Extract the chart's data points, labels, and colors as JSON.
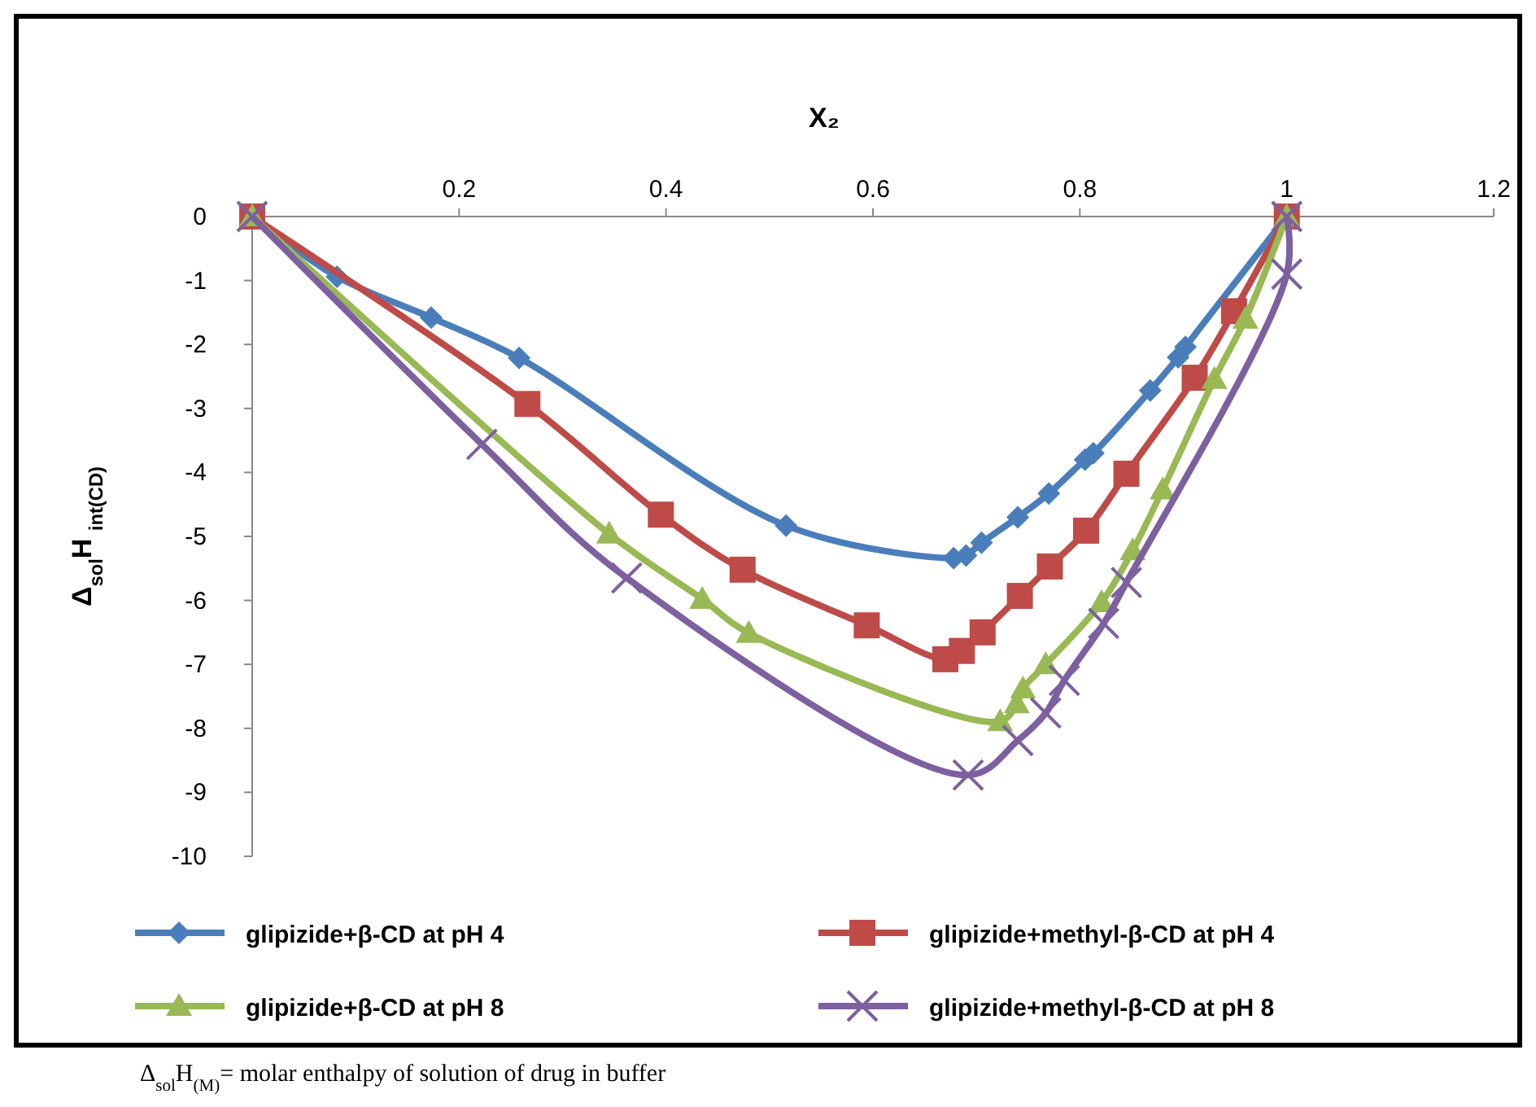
{
  "chart_data": {
    "type": "line",
    "xlabel": "X₂",
    "ylabel": "Δ$_{sol}$H $_{int(CD)}$",
    "xlim": [
      0,
      1.2
    ],
    "xticks": [
      0.2,
      0.4,
      0.6,
      0.8,
      1,
      1.2
    ],
    "ylim": [
      -10,
      0
    ],
    "yticks": [
      0,
      -1,
      -2,
      -3,
      -4,
      -5,
      -6,
      -7,
      -8,
      -9,
      -10
    ],
    "grid": false,
    "legend": "bottom",
    "annotations": [
      "Δ$_{sol}$H$_{(M)}$= molar enthalpy of solution of drug in buffer"
    ],
    "series": [
      {
        "name": "glipizide+β-CD at pH 4",
        "color": "#4a7ebb",
        "marker": "diamond",
        "x": [
          0,
          0.082,
          0.173,
          0.258,
          0.516,
          0.678,
          0.69,
          0.705,
          0.74,
          0.77,
          0.805,
          0.813,
          0.868,
          0.895,
          0.902,
          1
        ],
        "values": [
          0,
          -0.94,
          -1.58,
          -2.21,
          -4.83,
          -5.34,
          -5.3,
          -5.1,
          -4.7,
          -4.33,
          -3.8,
          -3.7,
          -2.72,
          -2.2,
          -2.04,
          0
        ]
      },
      {
        "name": "glipizide+methyl-β-CD at pH 4",
        "color": "#be4b48",
        "marker": "square",
        "x": [
          0,
          0.266,
          0.395,
          0.474,
          0.594,
          0.67,
          0.686,
          0.706,
          0.742,
          0.771,
          0.806,
          0.845,
          0.911,
          0.949,
          1
        ],
        "values": [
          0,
          -2.93,
          -4.66,
          -5.52,
          -6.39,
          -6.92,
          -6.79,
          -6.5,
          -5.93,
          -5.47,
          -4.91,
          -4.02,
          -2.52,
          -1.48,
          0
        ]
      },
      {
        "name": "glipizide+β-CD at pH 8",
        "color": "#98b954",
        "marker": "triangle",
        "x": [
          0,
          0.345,
          0.435,
          0.48,
          0.723,
          0.739,
          0.745,
          0.767,
          0.821,
          0.851,
          0.88,
          0.93,
          0.96,
          1
        ],
        "values": [
          0,
          -4.96,
          -5.98,
          -6.51,
          -7.89,
          -7.61,
          -7.38,
          -7.0,
          -6.03,
          -5.22,
          -4.27,
          -2.54,
          -1.6,
          0
        ]
      },
      {
        "name": "glipizide+methyl-β-CD at pH 8",
        "color": "#7d60a0",
        "marker": "cross",
        "x": [
          0,
          0.222,
          0.362,
          0.692,
          0.74,
          0.767,
          0.785,
          0.823,
          0.845,
          1,
          1
        ],
        "values": [
          0,
          -3.56,
          -5.65,
          -8.73,
          -8.19,
          -7.76,
          -7.25,
          -6.36,
          -5.72,
          -0.9,
          0
        ]
      }
    ]
  }
}
